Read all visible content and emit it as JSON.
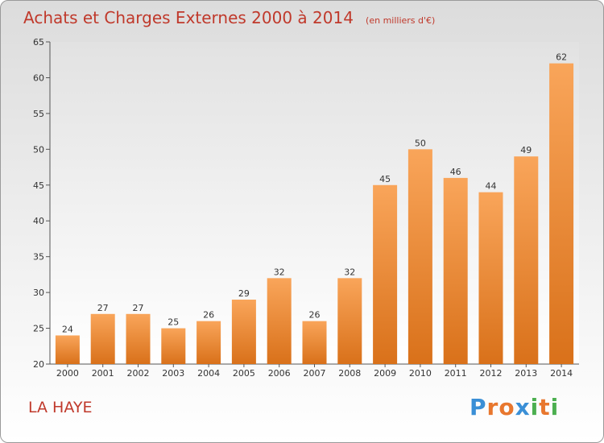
{
  "title": "Achats et Charges Externes 2000 à 2014",
  "unit_note": "(en milliers d'€)",
  "commune": "LA HAYE",
  "logo": {
    "text": "Proxiti",
    "letter_colors": [
      "#3a8fd6",
      "#e8772e",
      "#e8772e",
      "#3a8fd6",
      "#4caf50",
      "#e8772e",
      "#4caf50"
    ]
  },
  "colors": {
    "bar_top": "#f9a55a",
    "bar_bottom": "#d9711a",
    "title": "#c0392b"
  },
  "chart_data": {
    "type": "bar",
    "categories": [
      "2000",
      "2001",
      "2002",
      "2003",
      "2004",
      "2005",
      "2006",
      "2007",
      "2008",
      "2009",
      "2010",
      "2011",
      "2012",
      "2013",
      "2014"
    ],
    "values": [
      24,
      27,
      27,
      25,
      26,
      29,
      32,
      26,
      32,
      45,
      50,
      46,
      44,
      49,
      62
    ],
    "ylim": [
      20,
      65
    ],
    "yticks": [
      20,
      25,
      30,
      35,
      40,
      45,
      50,
      55,
      60,
      65
    ],
    "grid": false
  }
}
